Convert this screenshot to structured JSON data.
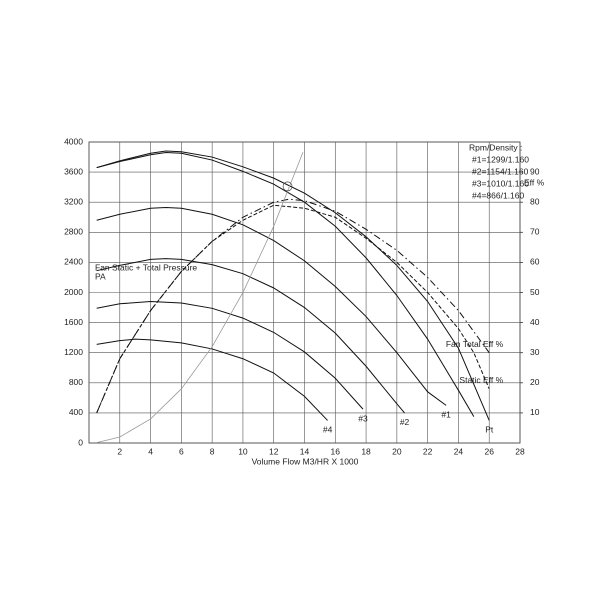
{
  "chart_data": {
    "type": "line",
    "xlabel": "Volume Flow M3/HR X 1000",
    "ylabel": [
      "Fan Static + Total Pressure",
      "PA"
    ],
    "y2label": "Eff %",
    "legend_title": "Rpm/Density :",
    "legend_items": [
      "#1=1299/1.160",
      "#2=1154/1.160",
      "#3=1010/1.160",
      "#4=866/1.160"
    ],
    "xlim": [
      0,
      28
    ],
    "xticks": [
      2,
      4,
      6,
      8,
      10,
      12,
      14,
      16,
      18,
      20,
      22,
      24,
      26,
      28
    ],
    "ylim": [
      0,
      4000
    ],
    "yticks": [
      0,
      400,
      800,
      1200,
      1600,
      2000,
      2400,
      2800,
      3200,
      3600,
      4000
    ],
    "y2lim": [
      0,
      100
    ],
    "y2ticks": [
      10,
      20,
      30,
      40,
      50,
      60,
      70,
      80,
      90
    ],
    "grid": true,
    "series": [
      {
        "name": "Pt",
        "color": "#111111",
        "x": [
          0.5,
          2,
          4,
          5,
          6,
          8,
          10,
          12,
          14,
          16,
          18,
          20,
          22,
          24,
          26
        ],
        "values": [
          3660,
          3750,
          3850,
          3880,
          3870,
          3800,
          3670,
          3520,
          3320,
          3060,
          2740,
          2360,
          1880,
          1260,
          300
        ]
      },
      {
        "color": "#111111",
        "x": [
          0.5,
          2,
          4,
          5,
          6,
          8,
          10,
          12,
          14,
          16,
          18,
          20,
          22,
          24,
          25
        ],
        "values": [
          3660,
          3740,
          3830,
          3860,
          3850,
          3760,
          3610,
          3440,
          3200,
          2880,
          2460,
          1960,
          1380,
          700,
          350
        ]
      },
      {
        "name": "#1",
        "color": "#111111",
        "x": [
          0.5,
          2,
          4,
          5,
          6,
          8,
          10,
          12,
          14,
          16,
          18,
          20,
          22,
          23.2
        ],
        "values": [
          2960,
          3040,
          3120,
          3130,
          3120,
          3040,
          2900,
          2690,
          2420,
          2080,
          1680,
          1200,
          680,
          500
        ]
      },
      {
        "name": "#2",
        "color": "#111111",
        "x": [
          0.5,
          2,
          4,
          5,
          6,
          8,
          10,
          12,
          14,
          16,
          18,
          20,
          20.5
        ],
        "values": [
          2290,
          2360,
          2440,
          2450,
          2440,
          2370,
          2250,
          2060,
          1800,
          1460,
          1020,
          520,
          400
        ]
      },
      {
        "name": "#3",
        "color": "#111111",
        "x": [
          0.5,
          2,
          4,
          6,
          8,
          10,
          12,
          14,
          16,
          17.8
        ],
        "values": [
          1790,
          1850,
          1880,
          1860,
          1790,
          1660,
          1470,
          1210,
          860,
          450
        ]
      },
      {
        "name": "#4",
        "color": "#111111",
        "x": [
          0.5,
          2,
          3,
          4,
          6,
          8,
          10,
          12,
          14,
          15.5
        ],
        "values": [
          1310,
          1360,
          1380,
          1370,
          1330,
          1250,
          1120,
          930,
          620,
          300
        ]
      },
      {
        "name": "Fan Total Eff %",
        "color": "#111111",
        "dash": "7 3 1.5 3",
        "axis": "y2",
        "x": [
          0.5,
          2,
          4,
          6,
          8,
          10,
          12,
          13,
          14,
          16,
          18,
          20,
          22,
          24,
          25,
          26
        ],
        "values": [
          10,
          28,
          44,
          57,
          67,
          75,
          80,
          81,
          80.5,
          77,
          71,
          64,
          55,
          44,
          37,
          30
        ]
      },
      {
        "name": "Static Eff %",
        "color": "#111111",
        "dash": "4 2",
        "axis": "y2",
        "x": [
          0.5,
          2,
          4,
          6,
          8,
          10,
          12,
          14,
          16,
          18,
          20,
          22,
          24,
          25,
          26
        ],
        "values": [
          10,
          28,
          44,
          57,
          67,
          74,
          79,
          78,
          75,
          68,
          60,
          50,
          38,
          30,
          18
        ]
      },
      {
        "color": "#999999",
        "x": [
          0.5,
          2,
          4,
          6,
          8,
          10,
          12,
          13.9
        ],
        "values": [
          5,
          80,
          320,
          720,
          1280,
          2000,
          2880,
          3864
        ]
      }
    ],
    "operating_point": {
      "x": 12.9,
      "y": 3410
    }
  }
}
